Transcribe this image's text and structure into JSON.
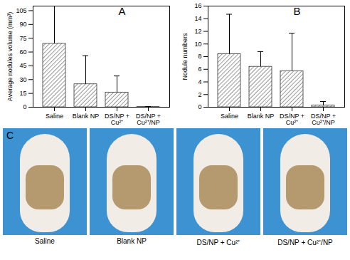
{
  "chart_data": [
    {
      "type": "bar",
      "title": "A",
      "categories": [
        "Saline",
        "Blank NP",
        "DS/NP +\nCu²⁺",
        "DS/NP +\nCu²⁺/NP"
      ],
      "values": [
        69,
        25,
        16,
        0.3
      ],
      "errors": [
        42,
        31,
        18,
        0.5
      ],
      "ylabel": "Average nodules volume (mm³)",
      "color": "#333333",
      "ylim": [
        0,
        110
      ],
      "yticks": [
        0,
        15,
        30,
        45,
        60,
        75,
        90,
        105
      ]
    },
    {
      "type": "bar",
      "title": "B",
      "categories": [
        "Saline",
        "Blank NP",
        "DS/NP +\nCu²⁺",
        "DS/NP +\nCu²⁺/NP"
      ],
      "values": [
        8.4,
        6.4,
        5.7,
        0.3
      ],
      "errors": [
        6.3,
        2.4,
        6.0,
        0.6
      ],
      "ylabel": "Nodule numbers",
      "color": "#333333",
      "ylim": [
        0,
        16
      ],
      "yticks": [
        0,
        2,
        4,
        6,
        8,
        10,
        12,
        14,
        16
      ]
    }
  ],
  "panel_c": {
    "label": "C",
    "captions": [
      "Saline",
      "Blank NP",
      "DS/NP + Cu²⁺",
      "DS/NP + Cu²⁺/NP"
    ]
  }
}
